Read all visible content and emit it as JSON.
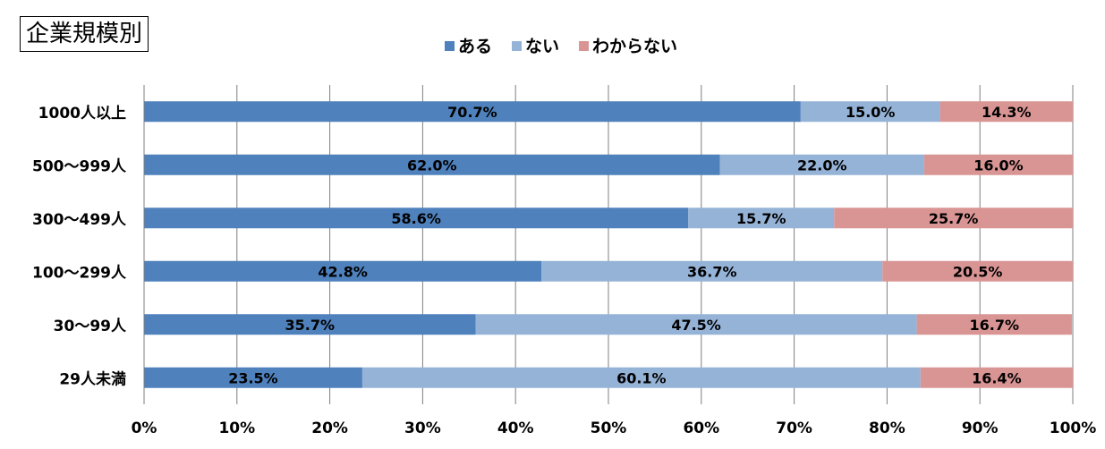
{
  "chart_data": {
    "type": "bar",
    "orientation": "horizontal",
    "stacked": true,
    "title": "企業規模別",
    "categories": [
      "1000人以上",
      "500～999人",
      "300～499人",
      "100～299人",
      "30～99人",
      "29人未満"
    ],
    "series": [
      {
        "name": "ある",
        "color": "#4f81bd",
        "values": [
          70.7,
          62.0,
          58.6,
          42.8,
          35.7,
          23.5
        ],
        "labels": [
          "70.7%",
          "62.0%",
          "58.6%",
          "42.8%",
          "35.7%",
          "23.5%"
        ]
      },
      {
        "name": "ない",
        "color": "#95b3d7",
        "values": [
          15.0,
          22.0,
          15.7,
          36.7,
          47.5,
          60.1
        ],
        "labels": [
          "15.0%",
          "22.0%",
          "15.7%",
          "36.7%",
          "47.5%",
          "60.1%"
        ]
      },
      {
        "name": "わからない",
        "color": "#d99594",
        "values": [
          14.3,
          16.0,
          25.7,
          20.5,
          16.7,
          16.4
        ],
        "labels": [
          "14.3%",
          "16.0%",
          "25.7%",
          "20.5%",
          "16.7%",
          "16.4%"
        ]
      }
    ],
    "xlim": [
      0,
      100
    ],
    "xticks": [
      "0%",
      "10%",
      "20%",
      "30%",
      "40%",
      "50%",
      "60%",
      "70%",
      "80%",
      "90%",
      "100%"
    ],
    "grid": true,
    "legend": "top-center"
  }
}
